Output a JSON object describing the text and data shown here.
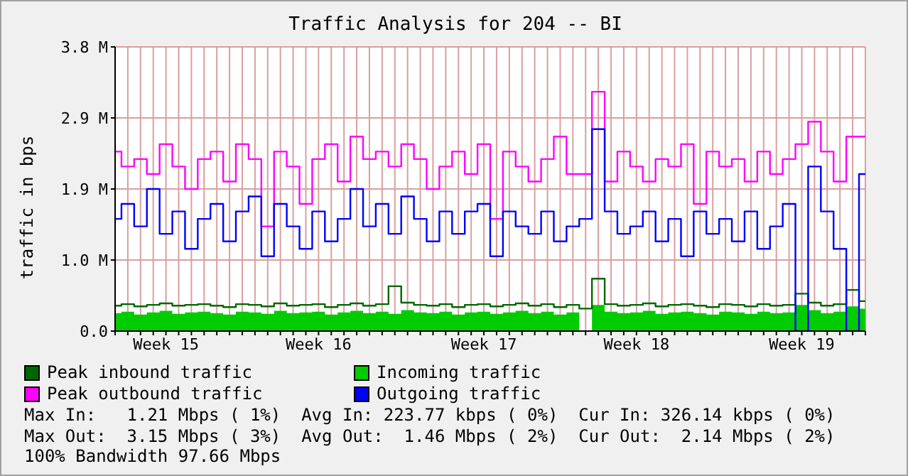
{
  "chart_data": {
    "type": "line",
    "title": "Traffic Analysis for 204 -- BI",
    "ylabel": "traffic in bps",
    "categories": [
      null,
      null,
      null,
      null,
      "Week 15",
      null,
      null,
      null,
      null,
      null,
      null,
      null,
      null,
      null,
      null,
      null,
      "Week 16",
      null,
      null,
      null,
      null,
      null,
      null,
      null,
      null,
      null,
      null,
      null,
      null,
      "Week 17",
      null,
      null,
      null,
      null,
      null,
      null,
      null,
      null,
      null,
      null,
      null,
      "Week 18",
      null,
      null,
      null,
      null,
      null,
      null,
      null,
      null,
      null,
      null,
      null,
      null,
      "Week 19",
      null,
      null,
      null,
      null,
      null
    ],
    "series": [
      {
        "name": "Peak inbound traffic",
        "type": "step",
        "color": "#006600",
        "values": [
          340000,
          360000,
          330000,
          350000,
          370000,
          340000,
          350000,
          360000,
          340000,
          320000,
          360000,
          350000,
          330000,
          370000,
          340000,
          350000,
          360000,
          320000,
          350000,
          370000,
          340000,
          360000,
          600000,
          380000,
          350000,
          340000,
          360000,
          320000,
          350000,
          360000,
          330000,
          350000,
          370000,
          340000,
          360000,
          320000,
          350000,
          300000,
          700000,
          360000,
          340000,
          350000,
          370000,
          330000,
          350000,
          360000,
          340000,
          320000,
          360000,
          350000,
          330000,
          360000,
          340000,
          350000,
          500000,
          380000,
          340000,
          360000,
          550000,
          400000
        ]
      },
      {
        "name": "Incoming traffic",
        "type": "area",
        "color": "#00cc00",
        "values": [
          240000,
          260000,
          220000,
          250000,
          270000,
          230000,
          250000,
          260000,
          240000,
          220000,
          260000,
          250000,
          230000,
          270000,
          240000,
          250000,
          260000,
          220000,
          250000,
          270000,
          240000,
          260000,
          230000,
          280000,
          250000,
          240000,
          260000,
          220000,
          250000,
          260000,
          230000,
          250000,
          270000,
          240000,
          260000,
          220000,
          250000,
          0,
          350000,
          260000,
          240000,
          250000,
          270000,
          230000,
          250000,
          260000,
          240000,
          220000,
          260000,
          250000,
          230000,
          260000,
          240000,
          250000,
          350000,
          280000,
          240000,
          260000,
          330000,
          300000
        ]
      },
      {
        "name": "Peak outbound traffic",
        "type": "step",
        "color": "#ff00ff",
        "values": [
          2400000,
          2200000,
          2300000,
          2100000,
          2500000,
          2200000,
          1900000,
          2300000,
          2400000,
          2000000,
          2500000,
          2300000,
          1400000,
          2400000,
          2200000,
          1700000,
          2300000,
          2500000,
          2000000,
          2600000,
          2300000,
          2400000,
          2200000,
          2500000,
          2300000,
          1900000,
          2200000,
          2400000,
          2100000,
          2500000,
          1500000,
          2400000,
          2200000,
          2000000,
          2300000,
          2600000,
          2100000,
          2100000,
          3200000,
          2000000,
          2400000,
          2200000,
          2000000,
          2300000,
          2200000,
          2500000,
          1700000,
          2400000,
          2200000,
          2300000,
          2000000,
          2400000,
          2100000,
          2300000,
          2500000,
          2800000,
          2400000,
          2000000,
          2600000,
          2600000
        ]
      },
      {
        "name": "Outgoing traffic",
        "type": "step",
        "color": "#0000ff",
        "values": [
          1500000,
          1700000,
          1400000,
          1900000,
          1300000,
          1600000,
          1100000,
          1500000,
          1700000,
          1200000,
          1600000,
          1800000,
          1000000,
          1700000,
          1400000,
          1100000,
          1600000,
          1200000,
          1500000,
          1900000,
          1400000,
          1700000,
          1300000,
          1800000,
          1500000,
          1200000,
          1600000,
          1300000,
          1600000,
          1700000,
          1000000,
          1600000,
          1400000,
          1300000,
          1600000,
          1200000,
          1400000,
          1500000,
          2700000,
          1600000,
          1300000,
          1400000,
          1600000,
          1200000,
          1500000,
          1000000,
          1600000,
          1300000,
          1500000,
          1200000,
          1600000,
          1100000,
          1400000,
          1700000,
          0,
          2200000,
          1600000,
          1100000,
          0,
          2100000
        ]
      }
    ],
    "ylim": [
      0,
      3800000
    ],
    "yticks": [
      {
        "value": 0,
        "label": "0.0"
      },
      {
        "value": 950000,
        "label": "1.0 M"
      },
      {
        "value": 1900000,
        "label": "1.9 M"
      },
      {
        "value": 2850000,
        "label": "2.9 M"
      },
      {
        "value": 3800000,
        "label": "3.8 M"
      }
    ],
    "grid": true,
    "legend": "bottom",
    "annotations": [
      "Max In:   1.21 Mbps ( 1%)  Avg In: 223.77 kbps ( 0%)  Cur In: 326.14 kbps ( 0%)",
      "Max Out:  3.15 Mbps ( 3%)  Avg Out:  1.46 Mbps ( 2%)  Cur Out:  2.14 Mbps ( 2%)",
      "100% Bandwidth 97.66 Mbps"
    ]
  }
}
